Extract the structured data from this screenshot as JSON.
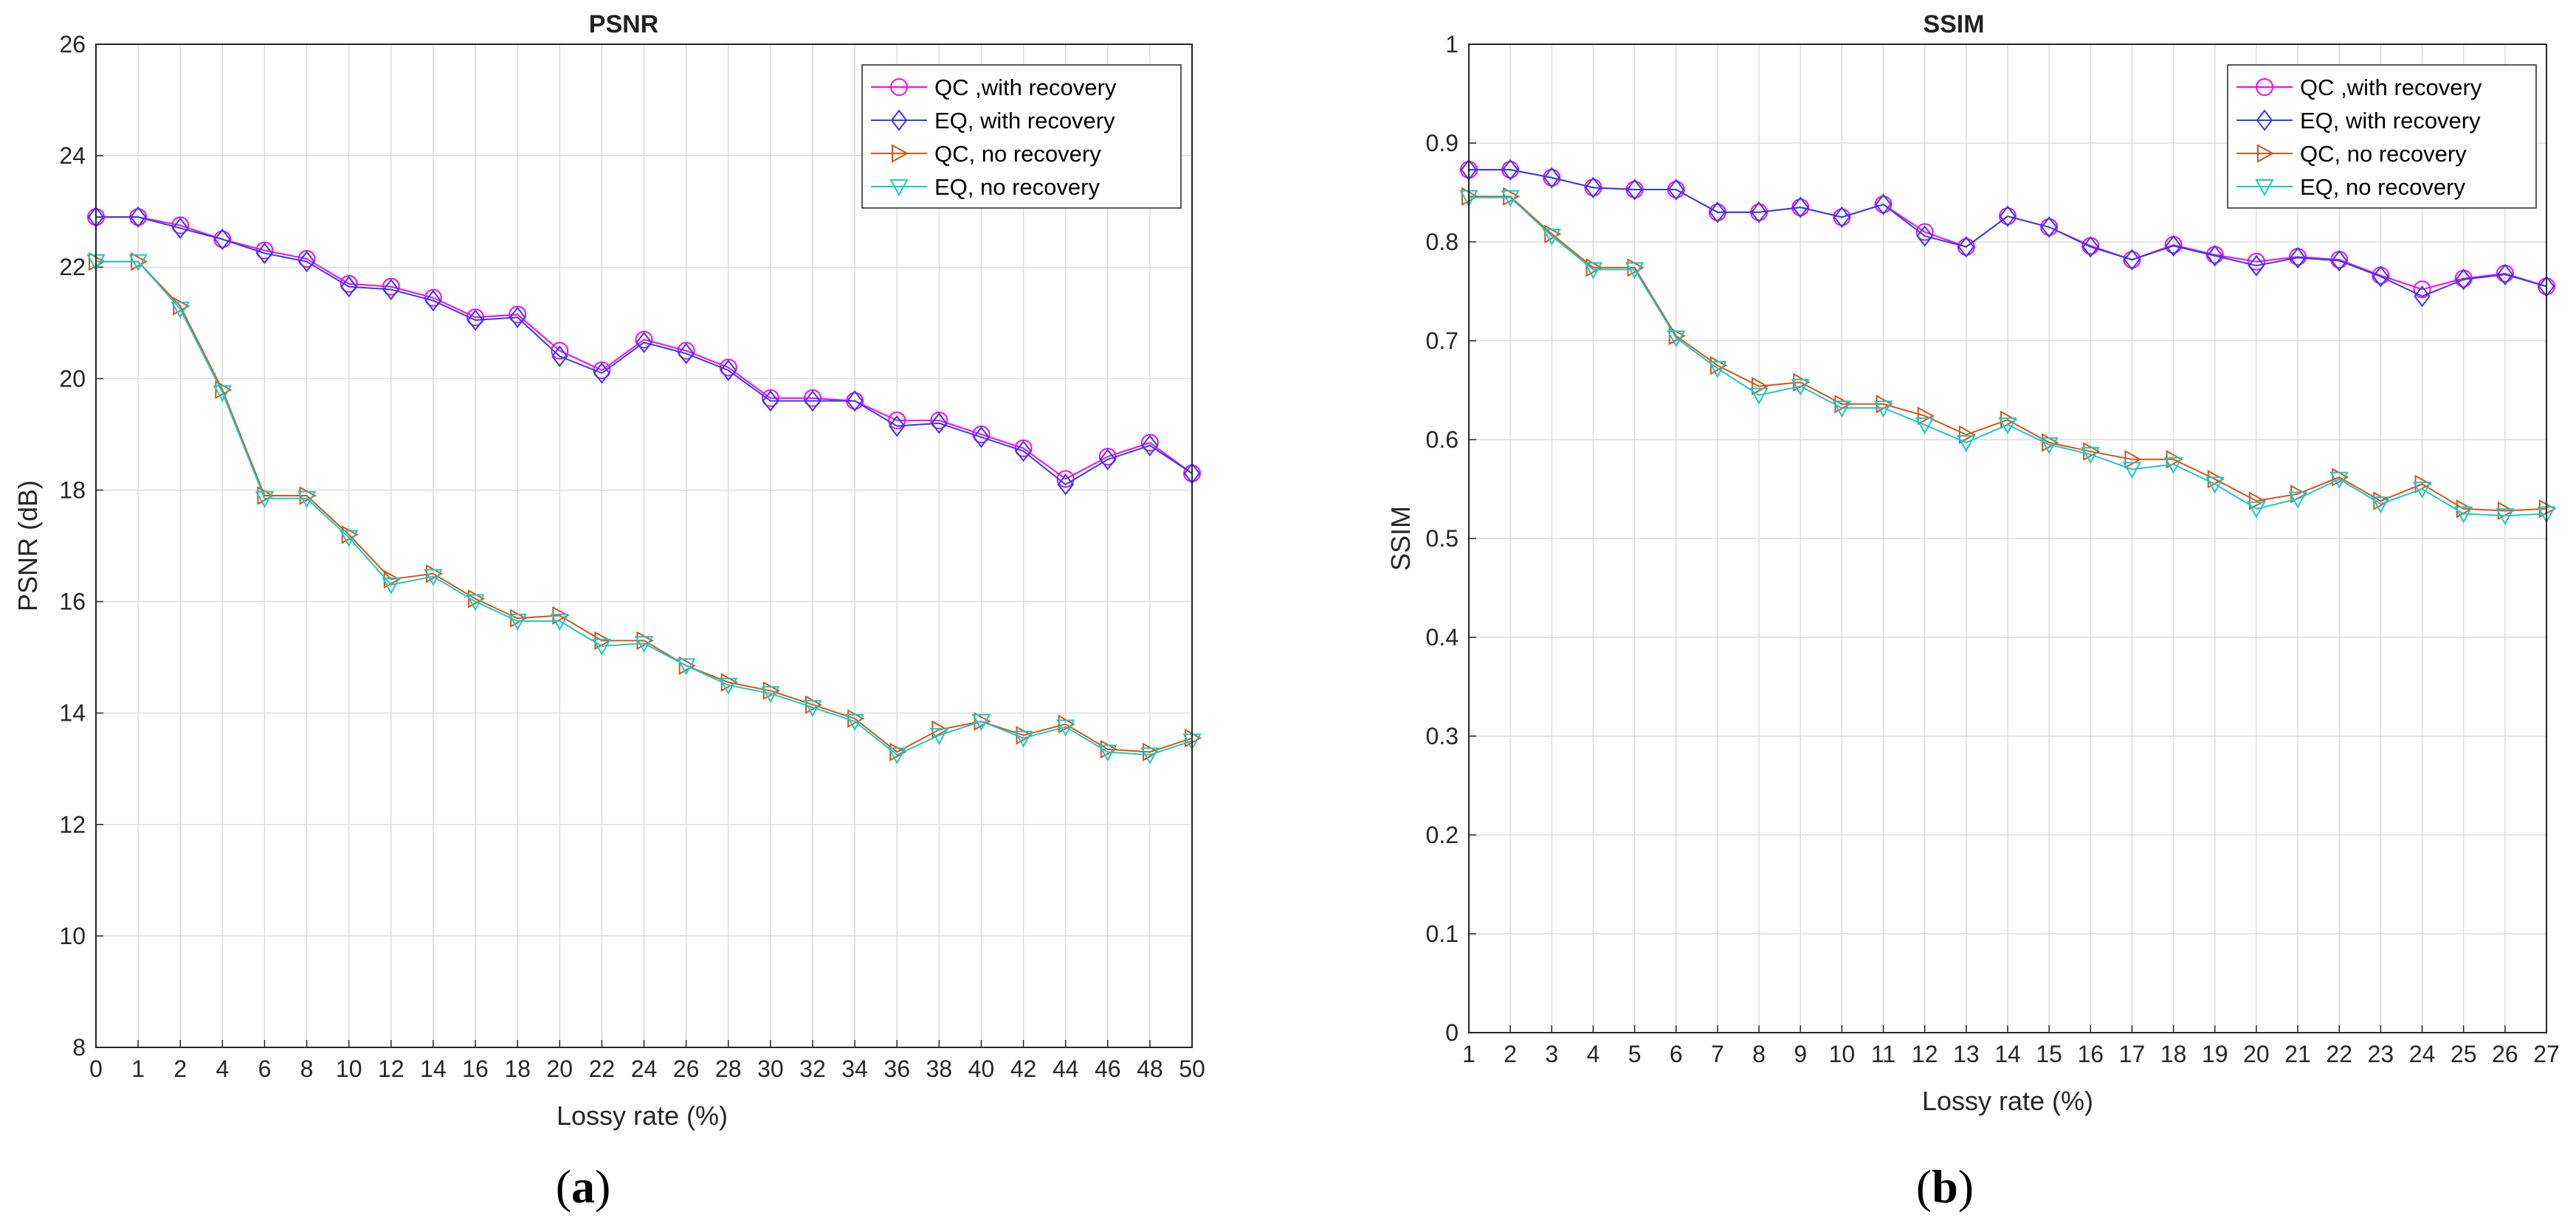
{
  "chart_data": [
    {
      "type": "line",
      "title": "PSNR",
      "xlabel": "Lossy rate (%)",
      "ylabel": "PSNR (dB)",
      "caption_letter": "a",
      "caption_open": "(",
      "caption_close": ")",
      "xlim": [
        0,
        50
      ],
      "ylim": [
        8,
        26
      ],
      "xticks": [
        0,
        1,
        2,
        4,
        6,
        8,
        10,
        12,
        14,
        16,
        18,
        20,
        22,
        24,
        26,
        28,
        30,
        32,
        34,
        36,
        38,
        40,
        42,
        44,
        46,
        48,
        50
      ],
      "yticks": [
        8,
        10,
        12,
        14,
        16,
        18,
        20,
        22,
        24,
        26
      ],
      "categorical_x": true,
      "grid": true,
      "legend_position": "top-right",
      "x": [
        0,
        1,
        2,
        4,
        6,
        8,
        10,
        12,
        14,
        16,
        18,
        20,
        22,
        24,
        26,
        28,
        30,
        32,
        34,
        36,
        38,
        40,
        42,
        44,
        46,
        48,
        50
      ],
      "series": [
        {
          "name": "QC ,with recovery",
          "color": "#ff00ff",
          "marker": "circle",
          "values": [
            22.9,
            22.9,
            22.75,
            22.5,
            22.3,
            22.15,
            21.7,
            21.65,
            21.45,
            21.1,
            21.15,
            20.5,
            20.15,
            20.7,
            20.5,
            20.2,
            19.65,
            19.65,
            19.6,
            19.25,
            19.25,
            19.0,
            18.75,
            18.2,
            18.6,
            18.85,
            18.3
          ]
        },
        {
          "name": "EQ, with recovery",
          "color": "#2f3fe8",
          "marker": "diamond",
          "values": [
            22.9,
            22.9,
            22.7,
            22.5,
            22.25,
            22.1,
            21.65,
            21.6,
            21.4,
            21.05,
            21.1,
            20.4,
            20.1,
            20.65,
            20.45,
            20.15,
            19.6,
            19.6,
            19.6,
            19.15,
            19.2,
            18.95,
            18.7,
            18.1,
            18.55,
            18.8,
            18.3
          ]
        },
        {
          "name": "QC, no recovery",
          "color": "#d95319",
          "marker": "triangle-right",
          "values": [
            22.1,
            22.1,
            21.3,
            19.8,
            17.9,
            17.9,
            17.2,
            16.4,
            16.5,
            16.05,
            15.7,
            15.75,
            15.3,
            15.3,
            14.85,
            14.55,
            14.4,
            14.15,
            13.9,
            13.3,
            13.7,
            13.85,
            13.6,
            13.8,
            13.35,
            13.3,
            13.55
          ]
        },
        {
          "name": "EQ, no recovery",
          "color": "#1ec8c8",
          "marker": "triangle-down",
          "values": [
            22.1,
            22.1,
            21.25,
            19.75,
            17.85,
            17.85,
            17.15,
            16.3,
            16.45,
            16.0,
            15.65,
            15.65,
            15.2,
            15.25,
            14.85,
            14.5,
            14.35,
            14.1,
            13.85,
            13.25,
            13.6,
            13.85,
            13.55,
            13.75,
            13.3,
            13.25,
            13.5
          ]
        }
      ]
    },
    {
      "type": "line",
      "title": "SSIM",
      "xlabel": "Lossy rate (%)",
      "ylabel": "SSIM",
      "caption_letter": "b",
      "caption_open": "(",
      "caption_close": ")",
      "xlim": [
        1,
        27
      ],
      "ylim": [
        0,
        1
      ],
      "xticks": [
        1,
        2,
        3,
        4,
        5,
        6,
        7,
        8,
        9,
        10,
        11,
        12,
        13,
        14,
        15,
        16,
        17,
        18,
        19,
        20,
        21,
        22,
        23,
        24,
        25,
        26,
        27
      ],
      "yticks": [
        0,
        0.1,
        0.2,
        0.3,
        0.4,
        0.5,
        0.6,
        0.7,
        0.8,
        0.9,
        1
      ],
      "categorical_x": false,
      "grid": true,
      "legend_position": "top-right",
      "x": [
        1,
        2,
        3,
        4,
        5,
        6,
        7,
        8,
        9,
        10,
        11,
        12,
        13,
        14,
        15,
        16,
        17,
        18,
        19,
        20,
        21,
        22,
        23,
        24,
        25,
        26,
        27
      ],
      "series": [
        {
          "name": "QC ,with recovery",
          "color": "#ff00ff",
          "marker": "circle",
          "values": [
            0.873,
            0.873,
            0.865,
            0.855,
            0.853,
            0.853,
            0.83,
            0.83,
            0.835,
            0.825,
            0.838,
            0.81,
            0.795,
            0.826,
            0.815,
            0.796,
            0.782,
            0.797,
            0.787,
            0.78,
            0.785,
            0.782,
            0.766,
            0.752,
            0.763,
            0.768,
            0.755
          ]
        },
        {
          "name": "EQ, with recovery",
          "color": "#2f3fe8",
          "marker": "diamond",
          "values": [
            0.873,
            0.873,
            0.865,
            0.855,
            0.853,
            0.853,
            0.83,
            0.83,
            0.835,
            0.825,
            0.838,
            0.806,
            0.795,
            0.826,
            0.815,
            0.795,
            0.782,
            0.796,
            0.786,
            0.776,
            0.784,
            0.781,
            0.765,
            0.745,
            0.762,
            0.767,
            0.755
          ]
        },
        {
          "name": "QC, no recovery",
          "color": "#d95319",
          "marker": "triangle-right",
          "values": [
            0.846,
            0.846,
            0.808,
            0.774,
            0.774,
            0.705,
            0.675,
            0.654,
            0.658,
            0.636,
            0.636,
            0.624,
            0.605,
            0.62,
            0.597,
            0.588,
            0.58,
            0.58,
            0.56,
            0.538,
            0.545,
            0.562,
            0.538,
            0.555,
            0.53,
            0.528,
            0.53
          ]
        },
        {
          "name": "EQ, no recovery",
          "color": "#1ec8c8",
          "marker": "triangle-down",
          "values": [
            0.845,
            0.845,
            0.806,
            0.772,
            0.772,
            0.703,
            0.672,
            0.645,
            0.654,
            0.632,
            0.632,
            0.615,
            0.597,
            0.615,
            0.595,
            0.585,
            0.57,
            0.575,
            0.555,
            0.53,
            0.54,
            0.56,
            0.535,
            0.55,
            0.525,
            0.523,
            0.525
          ]
        }
      ]
    }
  ]
}
